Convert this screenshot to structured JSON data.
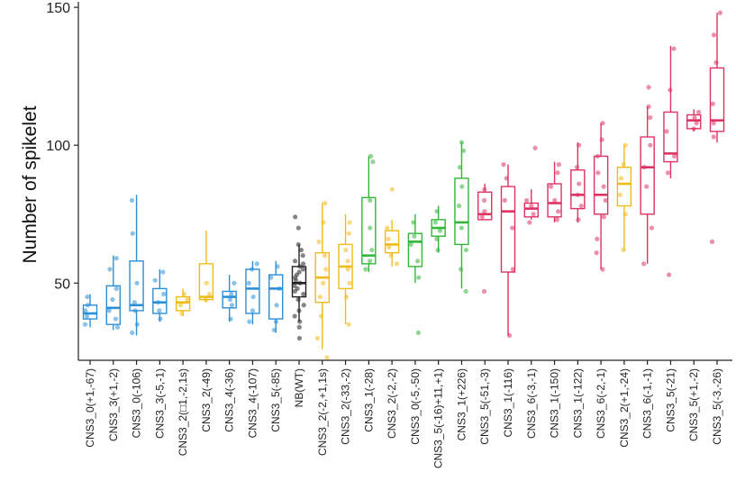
{
  "chart_data": {
    "type": "box",
    "title": "",
    "xlabel": "",
    "ylabel": "Number of spikelet",
    "ylim": [
      22,
      152
    ],
    "yticks": [
      50,
      100,
      150
    ],
    "grid": false,
    "legend": "none",
    "colors": {
      "blue": "#2b8fd8",
      "yellow": "#f0bb16",
      "black": "#222222",
      "green": "#33b53a",
      "red": "#dd3362"
    },
    "groups": [
      {
        "name": "CNS3_0(+1,-67)",
        "color": "blue",
        "q1": 37,
        "median": 39,
        "q3": 42,
        "whisker_low": 34,
        "whisker_high": 46,
        "points": [
          35,
          38,
          40,
          42,
          45
        ]
      },
      {
        "name": "CNS3_3(+1,-2)",
        "color": "blue",
        "q1": 35,
        "median": 41,
        "q3": 49,
        "whisker_low": 33,
        "whisker_high": 60,
        "points": [
          34,
          37,
          40,
          44,
          48,
          55,
          59
        ]
      },
      {
        "name": "CNS3_0(-106)",
        "color": "blue",
        "q1": 40,
        "median": 42,
        "q3": 58,
        "whisker_low": 31,
        "whisker_high": 82,
        "points": [
          32,
          35,
          40,
          43,
          50,
          68,
          80
        ]
      },
      {
        "name": "CNS3_3(-5,-1)",
        "color": "blue",
        "q1": 39,
        "median": 43,
        "q3": 48,
        "whisker_low": 36,
        "whisker_high": 55,
        "points": [
          37,
          40,
          43,
          46,
          51,
          54
        ]
      },
      {
        "name": "CNS3_2(□1,-2,1s)",
        "color": "yellow",
        "q1": 40,
        "median": 43,
        "q3": 45,
        "whisker_low": 38,
        "whisker_high": 48,
        "points": [
          39,
          42,
          44,
          46
        ]
      },
      {
        "name": "CNS3_2(-49)",
        "color": "yellow",
        "q1": 44,
        "median": 45,
        "q3": 57,
        "whisker_low": 43,
        "whisker_high": 69,
        "points": [
          44,
          46,
          50
        ]
      },
      {
        "name": "CNS3_4(-36)",
        "color": "blue",
        "q1": 41,
        "median": 45,
        "q3": 47,
        "whisker_low": 36,
        "whisker_high": 53,
        "points": [
          37,
          42,
          44,
          46,
          50
        ]
      },
      {
        "name": "CNS3_4(-107)",
        "color": "blue",
        "q1": 39,
        "median": 48,
        "q3": 55,
        "whisker_low": 35,
        "whisker_high": 58,
        "points": [
          36,
          40,
          45,
          50,
          55,
          57
        ]
      },
      {
        "name": "CNS3_5(-85)",
        "color": "blue",
        "q1": 37,
        "median": 48,
        "q3": 53,
        "whisker_low": 32,
        "whisker_high": 58,
        "points": [
          33,
          36,
          42,
          48,
          52,
          56
        ]
      },
      {
        "name": "NB(WT)",
        "color": "black",
        "q1": 45,
        "median": 50,
        "q3": 56,
        "whisker_low": 36,
        "whisker_high": 64,
        "points": [
          30,
          34,
          36,
          38,
          40,
          42,
          44,
          46,
          47,
          48,
          49,
          50,
          51,
          52,
          53,
          54,
          55,
          56,
          57,
          58,
          60,
          62,
          64,
          70,
          74
        ]
      },
      {
        "name": "CNS3_2(-2,+1,1s)",
        "color": "yellow",
        "q1": 43,
        "median": 52,
        "q3": 61,
        "whisker_low": 26,
        "whisker_high": 79,
        "points": [
          23,
          30,
          38,
          45,
          50,
          55,
          60,
          65,
          72,
          79
        ]
      },
      {
        "name": "CNS3_2(-33,-2)",
        "color": "yellow",
        "q1": 48,
        "median": 56,
        "q3": 64,
        "whisker_low": 35,
        "whisker_high": 75,
        "points": [
          35,
          45,
          50,
          55,
          58,
          62,
          68,
          72
        ]
      },
      {
        "name": "CNS3_1(-28)",
        "color": "green",
        "q1": 57,
        "median": 60,
        "q3": 81,
        "whisker_low": 54,
        "whisker_high": 96,
        "points": [
          55,
          58,
          62,
          70,
          80,
          94,
          96
        ]
      },
      {
        "name": "CNS3_2(-2,-2)",
        "color": "yellow",
        "q1": 61,
        "median": 64,
        "q3": 69,
        "whisker_low": 56,
        "whisker_high": 73,
        "points": [
          57,
          60,
          63,
          66,
          70,
          84
        ]
      },
      {
        "name": "CNS3_0(-5,-50)",
        "color": "green",
        "q1": 56,
        "median": 65,
        "q3": 68,
        "whisker_low": 50,
        "whisker_high": 75,
        "points": [
          32,
          52,
          58,
          64,
          67,
          72
        ]
      },
      {
        "name": "CNS3_5(-16)+11,+1)",
        "color": "green",
        "q1": 67,
        "median": 70,
        "q3": 73,
        "whisker_low": 61,
        "whisker_high": 78,
        "points": [
          62,
          66,
          69,
          72,
          76
        ]
      },
      {
        "name": "CNS3_1(+226)",
        "color": "green",
        "q1": 64,
        "median": 72,
        "q3": 88,
        "whisker_low": 48,
        "whisker_high": 101,
        "points": [
          47,
          55,
          62,
          70,
          78,
          85,
          92,
          98,
          101
        ]
      },
      {
        "name": "CNS3_5(-51,-3)",
        "color": "red",
        "q1": 73,
        "median": 75,
        "q3": 83,
        "whisker_low": 73,
        "whisker_high": 86,
        "points": [
          47,
          74,
          76,
          80,
          84
        ]
      },
      {
        "name": "CNS3_1(-116)",
        "color": "red",
        "q1": 54,
        "median": 76,
        "q3": 85,
        "whisker_low": 31,
        "whisker_high": 93,
        "points": [
          31,
          55,
          70,
          80,
          88,
          93
        ]
      },
      {
        "name": "CNS3_6(-3,-1)",
        "color": "red",
        "q1": 74,
        "median": 77,
        "q3": 79,
        "whisker_low": 73,
        "whisker_high": 84,
        "points": [
          72,
          75,
          78,
          80,
          99
        ]
      },
      {
        "name": "CNS3_1(-150)",
        "color": "red",
        "q1": 74,
        "median": 79,
        "q3": 86,
        "whisker_low": 72,
        "whisker_high": 94,
        "points": [
          73,
          76,
          80,
          85,
          90,
          93
        ]
      },
      {
        "name": "CNS3_1(-122)",
        "color": "red",
        "q1": 77,
        "median": 82,
        "q3": 91,
        "whisker_low": 72,
        "whisker_high": 101,
        "points": [
          73,
          78,
          82,
          86,
          92,
          100
        ]
      },
      {
        "name": "CNS3_6(-2,-1)",
        "color": "red",
        "q1": 75,
        "median": 82,
        "q3": 96,
        "whisker_low": 55,
        "whisker_high": 108,
        "points": [
          55,
          61,
          66,
          74,
          80,
          85,
          90,
          96,
          102,
          108
        ]
      },
      {
        "name": "CNS3_2(+1,-24)",
        "color": "yellow",
        "q1": 78,
        "median": 86,
        "q3": 92,
        "whisker_low": 62,
        "whisker_high": 100,
        "points": [
          62,
          75,
          82,
          88,
          93,
          100
        ]
      },
      {
        "name": "CNS3_6(-1,-1)",
        "color": "red",
        "q1": 75,
        "median": 92,
        "q3": 103,
        "whisker_low": 57,
        "whisker_high": 114,
        "points": [
          57,
          70,
          85,
          92,
          100,
          110,
          114,
          121
        ]
      },
      {
        "name": "CNS3_5(-21)",
        "color": "red",
        "q1": 94,
        "median": 97,
        "q3": 112,
        "whisker_low": 88,
        "whisker_high": 136,
        "points": [
          53,
          90,
          96,
          105,
          120,
          135
        ]
      },
      {
        "name": "CNS3_5(+1,-2)",
        "color": "red",
        "q1": 106,
        "median": 109,
        "q3": 111,
        "whisker_low": 105,
        "whisker_high": 113,
        "points": [
          106,
          108,
          110,
          112
        ]
      },
      {
        "name": "CNS3_5(-3,-26)",
        "color": "red",
        "q1": 105,
        "median": 109,
        "q3": 128,
        "whisker_low": 101,
        "whisker_high": 148,
        "points": [
          65,
          103,
          108,
          115,
          130,
          140,
          148
        ]
      }
    ]
  }
}
